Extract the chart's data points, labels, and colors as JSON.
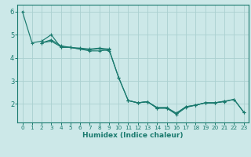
{
  "xlabel": "Humidex (Indice chaleur)",
  "ylabel": "",
  "xlim": [
    -0.5,
    23.5
  ],
  "ylim": [
    1.2,
    6.3
  ],
  "yticks": [
    2,
    3,
    4,
    5,
    6
  ],
  "xticks": [
    0,
    1,
    2,
    3,
    4,
    5,
    6,
    7,
    8,
    9,
    10,
    11,
    12,
    13,
    14,
    15,
    16,
    17,
    18,
    19,
    20,
    21,
    22,
    23
  ],
  "bg_color": "#cce8e8",
  "grid_color": "#aad0d0",
  "line_color": "#1a7a6e",
  "curves": [
    [
      6.0,
      4.65,
      4.72,
      5.0,
      4.45,
      4.45,
      4.38,
      4.3,
      4.3,
      4.35,
      3.15,
      2.15,
      2.05,
      2.1,
      1.82,
      1.82,
      1.55,
      1.85,
      1.95,
      2.05,
      2.05,
      2.1,
      2.2,
      1.65
    ],
    [
      null,
      null,
      4.65,
      4.72,
      4.48,
      4.45,
      4.38,
      4.35,
      4.4,
      4.3,
      null,
      null,
      null,
      null,
      null,
      null,
      null,
      null,
      null,
      null,
      null,
      null,
      null,
      null
    ],
    [
      null,
      null,
      null,
      null,
      null,
      null,
      null,
      null,
      null,
      null,
      null,
      2.15,
      2.05,
      2.1,
      1.82,
      1.82,
      1.6,
      1.88,
      1.95,
      2.05,
      2.05,
      2.12,
      null,
      null
    ],
    [
      null,
      null,
      4.65,
      4.78,
      4.52,
      4.45,
      4.42,
      4.38,
      4.42,
      4.38,
      3.15,
      2.15,
      2.05,
      2.1,
      1.85,
      1.85,
      1.6,
      1.88,
      1.95,
      2.05,
      2.05,
      2.12,
      2.2,
      1.65
    ]
  ]
}
